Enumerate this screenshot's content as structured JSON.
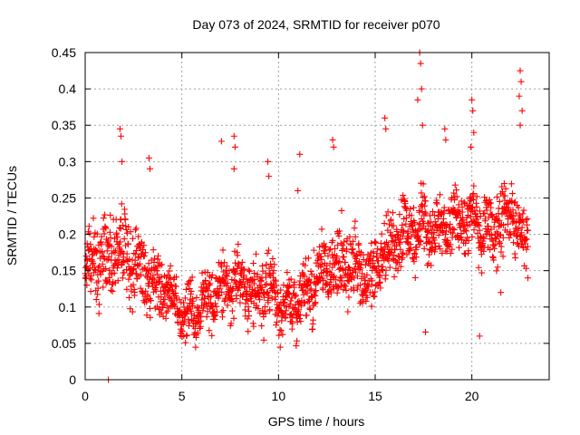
{
  "chart_data": {
    "type": "scatter",
    "title": "Day 073 of 2024, SRMTID for receiver p070",
    "xlabel": "GPS time / hours",
    "ylabel": "SRMTID / TECUs",
    "xlim": [
      0,
      24
    ],
    "ylim": [
      0,
      0.45
    ],
    "xticks": [
      0,
      5,
      10,
      15,
      20
    ],
    "yticks": [
      0,
      0.05,
      0.1,
      0.15,
      0.2,
      0.25,
      0.3,
      0.35,
      0.4,
      0.45
    ],
    "xtick_labels": [
      "0",
      "5",
      "10",
      "15",
      "20"
    ],
    "ytick_labels": [
      "0",
      "0.05",
      "0.1",
      "0.15",
      "0.2",
      "0.25",
      "0.3",
      "0.35",
      "0.4",
      "0.45"
    ],
    "grid": true,
    "marker": "plus",
    "marker_color": "#ff0000",
    "envelope": {
      "x": [
        0,
        0.5,
        1,
        1.5,
        2,
        2.5,
        3,
        3.5,
        4,
        4.5,
        5,
        5.5,
        6,
        6.5,
        7,
        7.5,
        8,
        8.5,
        9,
        9.5,
        10,
        10.5,
        11,
        11.5,
        12,
        12.5,
        13,
        13.5,
        14,
        14.5,
        15,
        15.5,
        16,
        16.5,
        17,
        17.5,
        18,
        18.5,
        19,
        19.5,
        20,
        20.5,
        21,
        21.5,
        22,
        22.5,
        23
      ],
      "center": [
        0.15,
        0.17,
        0.17,
        0.17,
        0.18,
        0.16,
        0.15,
        0.13,
        0.12,
        0.11,
        0.09,
        0.09,
        0.1,
        0.11,
        0.12,
        0.13,
        0.13,
        0.12,
        0.12,
        0.13,
        0.1,
        0.1,
        0.11,
        0.12,
        0.14,
        0.15,
        0.16,
        0.16,
        0.15,
        0.14,
        0.15,
        0.17,
        0.19,
        0.2,
        0.2,
        0.21,
        0.21,
        0.2,
        0.21,
        0.22,
        0.22,
        0.21,
        0.2,
        0.22,
        0.23,
        0.21,
        0.19
      ],
      "spread": [
        0.05,
        0.06,
        0.06,
        0.06,
        0.06,
        0.06,
        0.05,
        0.05,
        0.05,
        0.04,
        0.035,
        0.04,
        0.04,
        0.045,
        0.05,
        0.05,
        0.05,
        0.05,
        0.05,
        0.05,
        0.04,
        0.04,
        0.045,
        0.05,
        0.05,
        0.05,
        0.055,
        0.055,
        0.05,
        0.05,
        0.05,
        0.05,
        0.05,
        0.05,
        0.05,
        0.05,
        0.05,
        0.05,
        0.05,
        0.05,
        0.05,
        0.05,
        0.05,
        0.05,
        0.05,
        0.05,
        0.05
      ]
    },
    "highlights": [
      [
        0.05,
        0.17
      ],
      [
        0.1,
        0.165
      ],
      [
        1.2,
        0.0
      ],
      [
        1.8,
        0.345
      ],
      [
        1.85,
        0.335
      ],
      [
        1.9,
        0.3
      ],
      [
        3.3,
        0.305
      ],
      [
        3.35,
        0.29
      ],
      [
        7.05,
        0.328
      ],
      [
        7.7,
        0.335
      ],
      [
        7.75,
        0.32
      ],
      [
        7.7,
        0.29
      ],
      [
        9.45,
        0.3
      ],
      [
        9.5,
        0.28
      ],
      [
        11.1,
        0.31
      ],
      [
        11.0,
        0.26
      ],
      [
        12.8,
        0.33
      ],
      [
        12.85,
        0.32
      ],
      [
        15.5,
        0.36
      ],
      [
        15.55,
        0.345
      ],
      [
        17.3,
        0.45
      ],
      [
        17.35,
        0.435
      ],
      [
        17.4,
        0.4
      ],
      [
        17.2,
        0.385
      ],
      [
        17.45,
        0.35
      ],
      [
        17.6,
        0.0655
      ],
      [
        18.6,
        0.345
      ],
      [
        18.65,
        0.33
      ],
      [
        20.0,
        0.385
      ],
      [
        20.05,
        0.37
      ],
      [
        20.1,
        0.34
      ],
      [
        19.95,
        0.32
      ],
      [
        22.5,
        0.425
      ],
      [
        22.55,
        0.41
      ],
      [
        22.45,
        0.39
      ],
      [
        22.6,
        0.37
      ],
      [
        22.5,
        0.35
      ],
      [
        20.4,
        0.06
      ],
      [
        21.5,
        0.12
      ],
      [
        22.9,
        0.14
      ]
    ],
    "sample_interval_hours": 0.0125
  }
}
